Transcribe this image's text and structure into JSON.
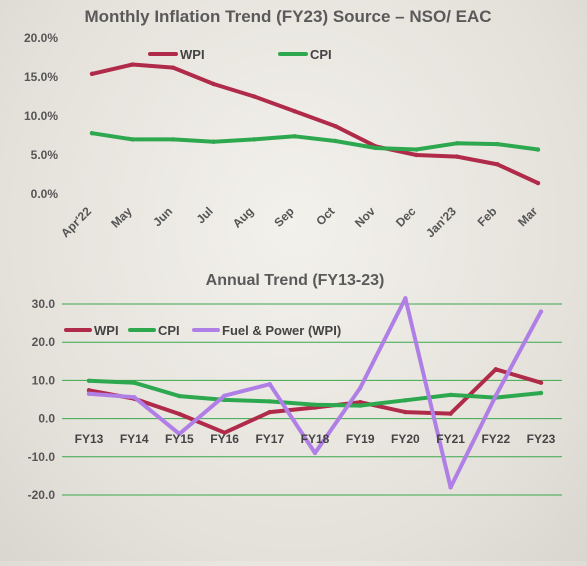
{
  "chart_data": [
    {
      "type": "line",
      "title": "Monthly Inflation Trend (FY23) Source – NSO/ EAC",
      "categories": [
        "Apr'22",
        "May",
        "Jun",
        "Jul",
        "Aug",
        "Sep",
        "Oct",
        "Nov",
        "Dec",
        "Jan'23",
        "Feb",
        "Mar"
      ],
      "y_ticks": [
        "20.0%",
        "15.0%",
        "10.0%",
        "5.0%",
        "0.0%"
      ],
      "ylim": [
        0,
        20
      ],
      "grid": false,
      "legend_position": "top",
      "series": [
        {
          "name": "WPI",
          "color": "#b02a4a",
          "values": [
            15.4,
            16.6,
            16.2,
            14.1,
            12.5,
            10.6,
            8.7,
            6.1,
            5.0,
            4.8,
            3.8,
            1.4
          ]
        },
        {
          "name": "CPI",
          "color": "#2ea84f",
          "values": [
            7.8,
            7.0,
            7.0,
            6.7,
            7.0,
            7.4,
            6.8,
            5.9,
            5.7,
            6.5,
            6.4,
            5.7
          ]
        }
      ]
    },
    {
      "type": "line",
      "title": "Annual Trend (FY13-23)",
      "categories": [
        "FY13",
        "FY14",
        "FY15",
        "FY16",
        "FY17",
        "FY18",
        "FY19",
        "FY20",
        "FY21",
        "FY22",
        "FY23"
      ],
      "y_ticks": [
        "30.0",
        "20.0",
        "10.0",
        "0.0",
        "-10.0",
        "-20.0"
      ],
      "ylim": [
        -20,
        30
      ],
      "grid": true,
      "grid_color": "#3aa84c",
      "legend_position": "top-left",
      "series": [
        {
          "name": "WPI",
          "color": "#b02a4a",
          "values": [
            7.4,
            5.2,
            1.2,
            -3.7,
            1.7,
            2.9,
            4.3,
            1.7,
            1.3,
            12.9,
            9.4
          ]
        },
        {
          "name": "CPI",
          "color": "#2ea84f",
          "values": [
            9.9,
            9.4,
            5.9,
            4.9,
            4.5,
            3.6,
            3.4,
            4.8,
            6.2,
            5.5,
            6.7
          ]
        },
        {
          "name": "Fuel & Power (WPI)",
          "color": "#b07fe6",
          "values": [
            6.5,
            5.6,
            -4.0,
            6.0,
            9.0,
            -9.0,
            8.0,
            31.5,
            -18.0,
            6.0,
            28.0
          ]
        }
      ]
    }
  ]
}
